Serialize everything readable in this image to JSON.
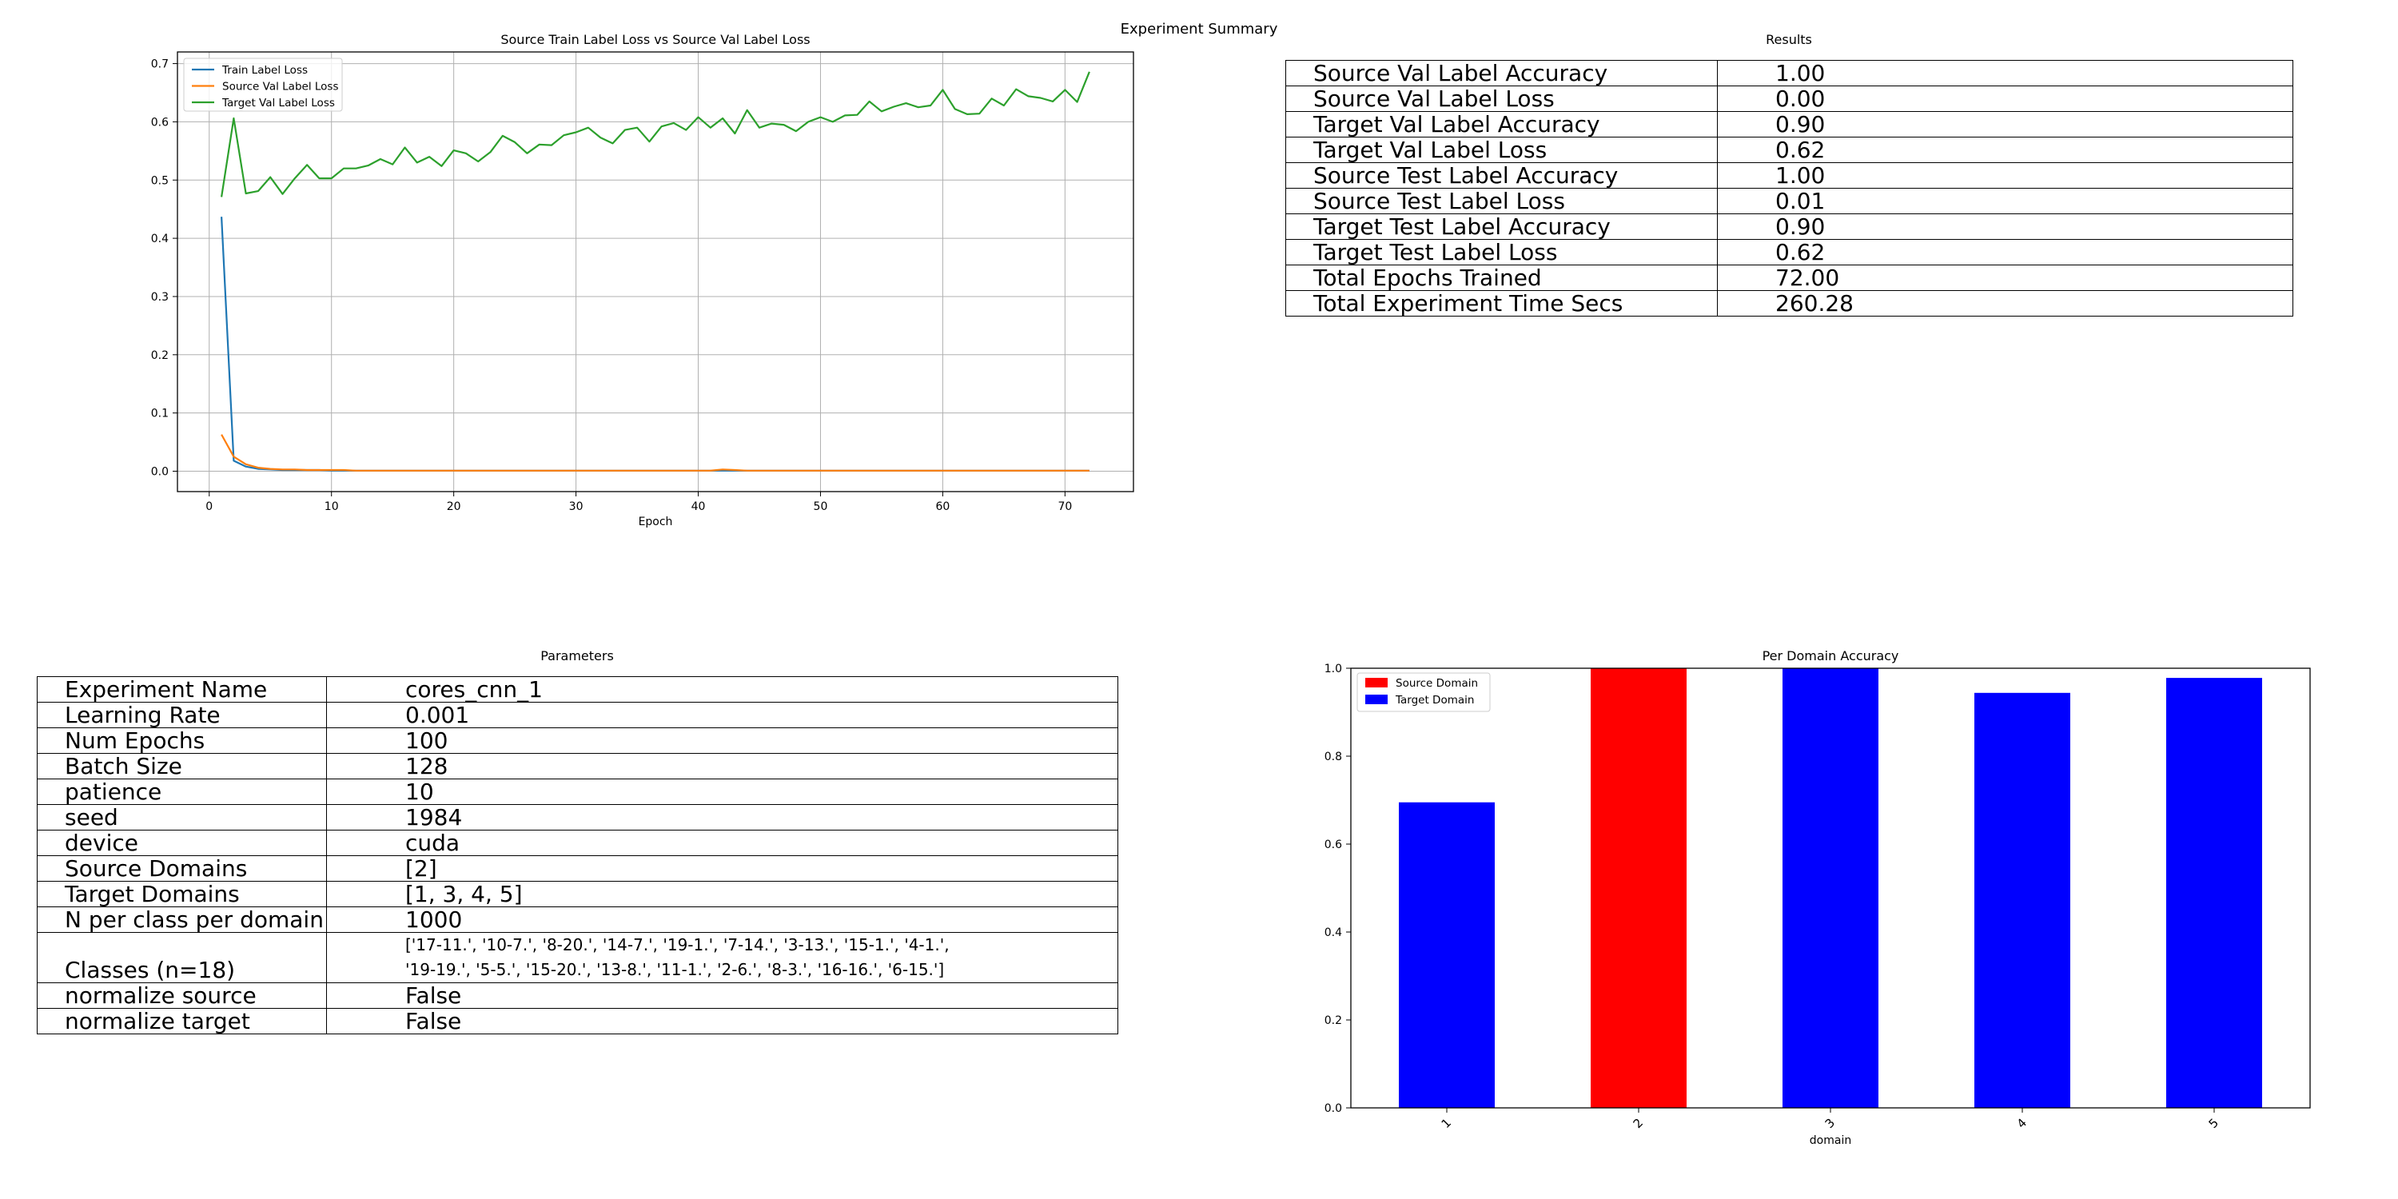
{
  "figure_title": "Experiment Summary",
  "loss_title": "Source Train Label Loss vs Source Val Label Loss",
  "results_title": "Results",
  "params_title": "Parameters",
  "domain_title": "Per Domain Accuracy",
  "colors": {
    "train": "#1f77b4",
    "source_val": "#ff7f0e",
    "target_val": "#2ca02c",
    "source_domain": "#ff0000",
    "target_domain": "#0000ff"
  },
  "results": [
    [
      "Source Val Label Accuracy",
      "1.00"
    ],
    [
      "Source Val Label Loss",
      "0.00"
    ],
    [
      "Target Val Label Accuracy",
      "0.90"
    ],
    [
      "Target Val Label Loss",
      "0.62"
    ],
    [
      "Source Test Label Accuracy",
      "1.00"
    ],
    [
      "Source Test Label Loss",
      "0.01"
    ],
    [
      "Target Test Label Accuracy",
      "0.90"
    ],
    [
      "Target Test Label Loss",
      "0.62"
    ],
    [
      "Total Epochs Trained",
      "72.00"
    ],
    [
      "Total Experiment Time Secs",
      "260.28"
    ]
  ],
  "parameters": [
    [
      "Experiment Name",
      "cores_cnn_1"
    ],
    [
      "Learning Rate",
      "0.001"
    ],
    [
      "Num Epochs",
      "100"
    ],
    [
      "Batch Size",
      "128"
    ],
    [
      "patience",
      "10"
    ],
    [
      "seed",
      "1984"
    ],
    [
      "device",
      "cuda"
    ],
    [
      "Source Domains",
      "[2]"
    ],
    [
      "Target Domains",
      "[1, 3, 4, 5]"
    ],
    [
      "N per class per domain",
      "1000"
    ]
  ],
  "classes_row": {
    "key": "Classes (n=18)",
    "line1": "['17-11.', '10-7.', '8-20.', '14-7.', '19-1.', '7-14.', '3-13.', '15-1.', '4-1.',",
    "line2": "'19-19.', '5-5.', '15-20.', '13-8.', '11-1.', '2-6.', '8-3.', '16-16.', '6-15.']"
  },
  "parameters_tail": [
    [
      "normalize source",
      "False"
    ],
    [
      "normalize target",
      "False"
    ]
  ],
  "chart_data": [
    {
      "type": "line",
      "title": "Source Train Label Loss vs Source Val Label Loss",
      "xlabel": "Epoch",
      "ylabel": "",
      "xlim": [
        -2.6,
        75.6
      ],
      "ylim": [
        -0.035,
        0.72
      ],
      "xticks": [
        0,
        10,
        20,
        30,
        40,
        50,
        60,
        70
      ],
      "yticks": [
        0.0,
        0.1,
        0.2,
        0.3,
        0.4,
        0.5,
        0.6,
        0.7
      ],
      "grid": true,
      "legend_position": "upper-left",
      "x_start": 1,
      "series": [
        {
          "name": "Train Label Loss",
          "color": "#1f77b4",
          "values": [
            0.437,
            0.018,
            0.008,
            0.004,
            0.003,
            0.002,
            0.002,
            0.002,
            0.002,
            0.001,
            0.001,
            0.001,
            0.001,
            0.001,
            0.001,
            0.001,
            0.001,
            0.001,
            0.001,
            0.001,
            0.001,
            0.001,
            0.001,
            0.001,
            0.001,
            0.001,
            0.001,
            0.001,
            0.001,
            0.001,
            0.001,
            0.001,
            0.001,
            0.001,
            0.001,
            0.001,
            0.001,
            0.001,
            0.001,
            0.001,
            0.001,
            0.001,
            0.001,
            0.001,
            0.001,
            0.001,
            0.001,
            0.001,
            0.001,
            0.001,
            0.001,
            0.001,
            0.001,
            0.001,
            0.001,
            0.001,
            0.001,
            0.001,
            0.001,
            0.001,
            0.001,
            0.001,
            0.001,
            0.001,
            0.001,
            0.001,
            0.001,
            0.001,
            0.001,
            0.001,
            0.001,
            0.001
          ]
        },
        {
          "name": "Source Val Label Loss",
          "color": "#ff7f0e",
          "values": [
            0.063,
            0.025,
            0.012,
            0.006,
            0.004,
            0.003,
            0.003,
            0.002,
            0.002,
            0.002,
            0.002,
            0.001,
            0.001,
            0.001,
            0.001,
            0.001,
            0.001,
            0.001,
            0.001,
            0.001,
            0.001,
            0.001,
            0.001,
            0.001,
            0.001,
            0.001,
            0.001,
            0.001,
            0.001,
            0.001,
            0.001,
            0.001,
            0.001,
            0.001,
            0.001,
            0.001,
            0.001,
            0.001,
            0.001,
            0.001,
            0.001,
            0.003,
            0.002,
            0.001,
            0.001,
            0.001,
            0.001,
            0.001,
            0.001,
            0.001,
            0.001,
            0.001,
            0.001,
            0.001,
            0.001,
            0.001,
            0.001,
            0.001,
            0.001,
            0.001,
            0.001,
            0.001,
            0.001,
            0.001,
            0.001,
            0.001,
            0.001,
            0.001,
            0.001,
            0.001,
            0.001,
            0.001
          ]
        },
        {
          "name": "Target Val Label Loss",
          "color": "#2ca02c",
          "values": [
            0.471,
            0.606,
            0.477,
            0.481,
            0.505,
            0.476,
            0.503,
            0.526,
            0.503,
            0.503,
            0.52,
            0.52,
            0.525,
            0.536,
            0.527,
            0.556,
            0.53,
            0.54,
            0.524,
            0.551,
            0.546,
            0.532,
            0.548,
            0.576,
            0.565,
            0.546,
            0.561,
            0.56,
            0.577,
            0.582,
            0.59,
            0.573,
            0.563,
            0.586,
            0.59,
            0.566,
            0.592,
            0.598,
            0.586,
            0.608,
            0.59,
            0.606,
            0.58,
            0.62,
            0.59,
            0.597,
            0.595,
            0.584,
            0.6,
            0.608,
            0.6,
            0.611,
            0.612,
            0.635,
            0.618,
            0.626,
            0.632,
            0.625,
            0.628,
            0.655,
            0.622,
            0.613,
            0.614,
            0.64,
            0.628,
            0.656,
            0.644,
            0.641,
            0.635,
            0.655,
            0.634,
            0.686
          ]
        }
      ]
    },
    {
      "type": "bar",
      "title": "Per Domain Accuracy",
      "xlabel": "domain",
      "ylabel": "",
      "categories": [
        "1",
        "2",
        "3",
        "4",
        "5"
      ],
      "values": [
        0.695,
        1.0,
        1.0,
        0.944,
        0.978
      ],
      "domain_type": [
        "target",
        "source",
        "target",
        "target",
        "target"
      ],
      "ylim": [
        0.0,
        1.0
      ],
      "yticks": [
        0.0,
        0.2,
        0.4,
        0.6,
        0.8,
        1.0
      ],
      "legend": [
        "Source Domain",
        "Target Domain"
      ],
      "legend_position": "upper-left",
      "grid": false
    }
  ]
}
